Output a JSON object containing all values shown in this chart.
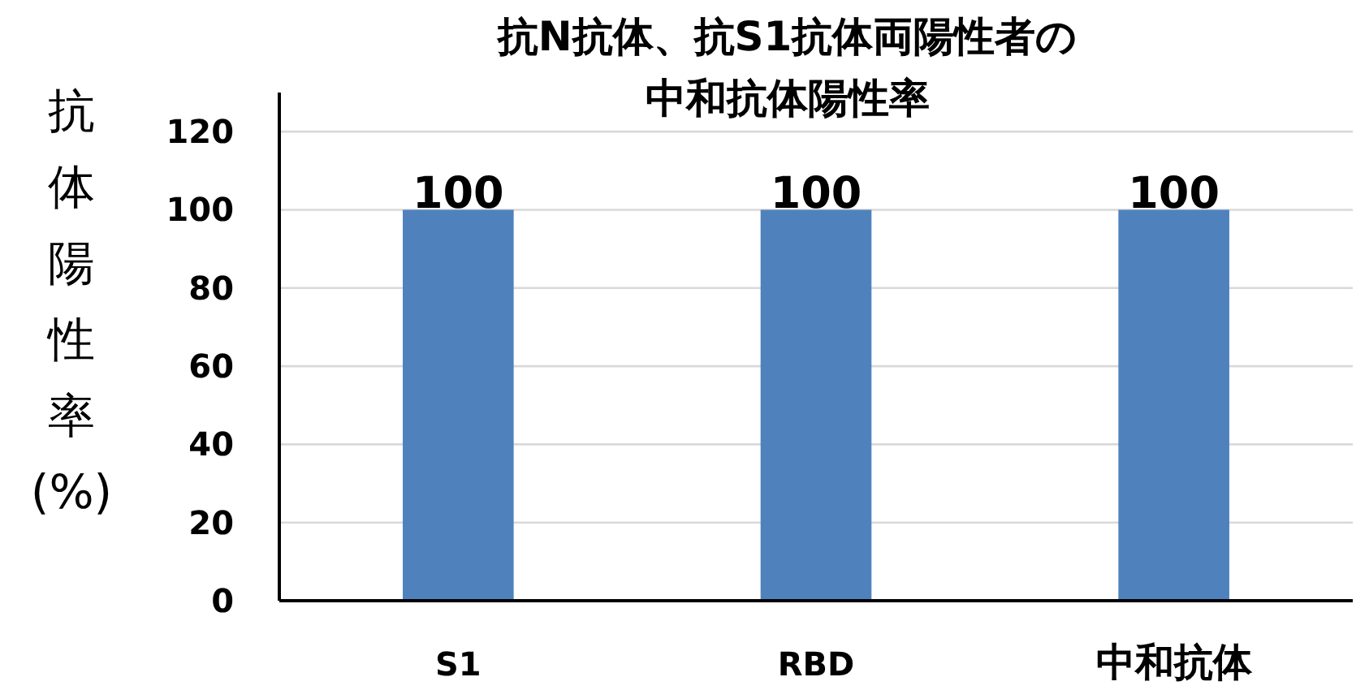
{
  "chart_data": {
    "type": "bar",
    "title": "抗N抗体、抗S1抗体両陽性者の中和抗体陽性率",
    "ylabel": "抗体陽性率(%)",
    "categories": [
      "S1",
      "RBD",
      "中和抗体"
    ],
    "values": [
      100,
      100,
      100
    ],
    "color": "#4f81bd",
    "ylim": [
      0,
      130
    ],
    "yticks": [
      0,
      20,
      40,
      60,
      80,
      100,
      120
    ],
    "grid": "y",
    "data_labels": true
  }
}
